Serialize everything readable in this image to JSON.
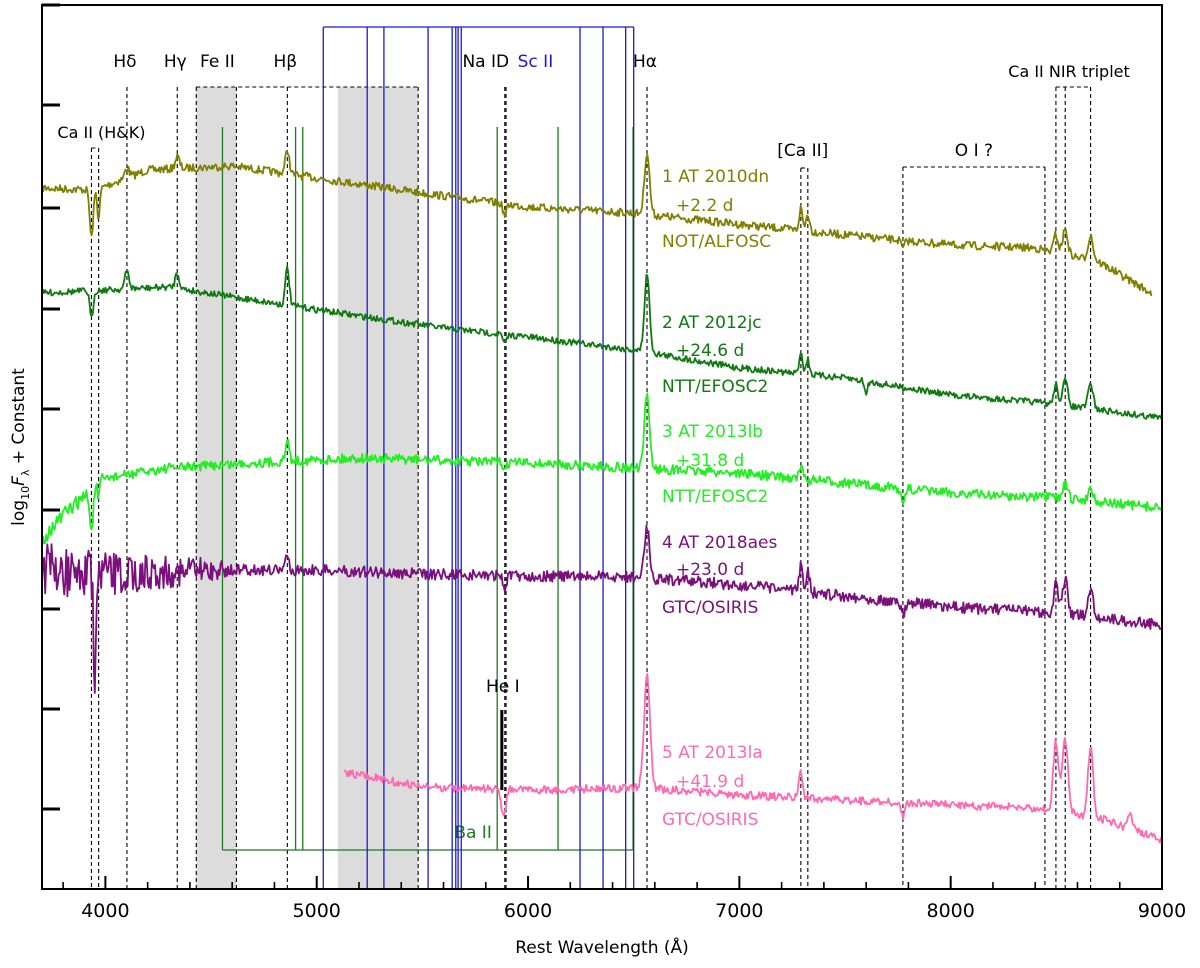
{
  "chart_data": {
    "type": "line",
    "xlabel": "Rest Wavelength (Å)",
    "ylabel_main": "log",
    "ylabel_sub": "10",
    "ylabel_var": "F",
    "ylabel_var_sub": "λ",
    "ylabel_tail": " + Constant",
    "xlim": [
      3700,
      9000
    ],
    "xticks": [
      4000,
      5000,
      6000,
      7000,
      8000,
      9000
    ],
    "xtick_labels": [
      "4000",
      "5000",
      "6000",
      "7000",
      "8000",
      "9000"
    ],
    "colors": {
      "axis": "#000000",
      "shade": "#dcdcdc",
      "ba": "#1f7a1f",
      "sc": "#1a1ad6",
      "line": "#000000"
    },
    "shaded_regions": [
      [
        4430,
        4620
      ],
      [
        5100,
        5480
      ]
    ],
    "line_ids": [
      {
        "label": "Ca II (H&K)",
        "lines": [
          3934,
          3968
        ]
      },
      {
        "label": "Hδ",
        "lines": [
          4102
        ]
      },
      {
        "label": "Hγ",
        "lines": [
          4340
        ]
      },
      {
        "label": "Fe II",
        "lines": [
          4430,
          4620,
          5480
        ]
      },
      {
        "label": "Hβ",
        "lines": [
          4861
        ]
      },
      {
        "label": "Na ID",
        "lines": [
          5890,
          5896
        ]
      },
      {
        "label": "Hα",
        "lines": [
          6563
        ]
      },
      {
        "label": "[Ca II]",
        "lines": [
          7291,
          7324
        ]
      },
      {
        "label": "O I ?",
        "lines": [
          7774,
          8446
        ]
      },
      {
        "label": "Ca II NIR triplet",
        "lines": [
          8498,
          8542,
          8662
        ]
      },
      {
        "label": "He I",
        "lines": [
          5876
        ]
      }
    ],
    "ba_ii": {
      "label": "Ba II",
      "lines": [
        4554,
        4900,
        4934,
        5854,
        6142,
        6497
      ]
    },
    "sc_ii": {
      "label": "Sc II",
      "lines": [
        5031,
        5239,
        5318,
        5527,
        5641,
        5658,
        5669,
        5684,
        6246,
        6355,
        6462,
        6500
      ]
    },
    "series": [
      {
        "id": 1,
        "name": "1 AT 2010dn",
        "epoch": "+2.2 d",
        "instrument": "NOT/ALFOSC",
        "color": "#808000",
        "range": [
          3700,
          8950
        ]
      },
      {
        "id": 2,
        "name": "2 AT 2012jc",
        "epoch": "+24.6 d",
        "instrument": "NTT/EFOSC2",
        "color": "#0f7a0f",
        "range": [
          3700,
          9000
        ]
      },
      {
        "id": 3,
        "name": "3 AT 2013lb",
        "epoch": "+31.8 d",
        "instrument": "NTT/EFOSC2",
        "color": "#22ee22",
        "range": [
          3700,
          9000
        ]
      },
      {
        "id": 4,
        "name": "4 AT 2018aes",
        "epoch": "+23.0 d",
        "instrument": "GTC/OSIRIS",
        "color": "#7b0f7b",
        "range": [
          3700,
          9000
        ]
      },
      {
        "id": 5,
        "name": "5 AT 2013la",
        "epoch": "+41.9 d",
        "instrument": "GTC/OSIRIS",
        "color": "#ff69b4",
        "range": [
          5130,
          9000
        ]
      }
    ]
  }
}
